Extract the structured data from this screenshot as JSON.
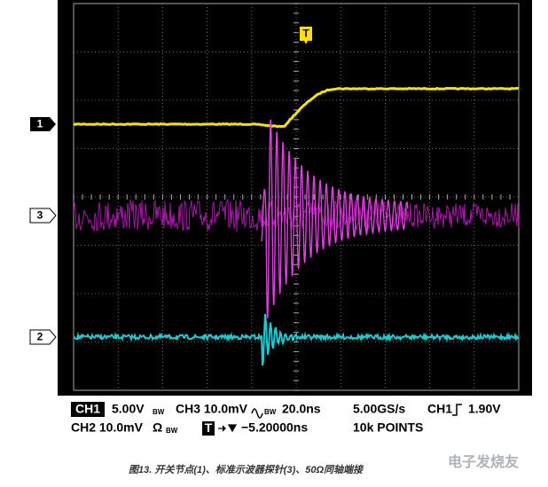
{
  "screen": {
    "trigger_marker": "T",
    "channel_markers": [
      "1",
      "3",
      "2"
    ]
  },
  "readout": {
    "row1": {
      "ch1_tag": "CH1",
      "ch1_scale": "5.00V",
      "ch1_bw": "BW",
      "ch3": "CH3 10.0mV",
      "ch3_bw": "BW",
      "timebase": "20.0ns",
      "rate": "5.00GS/s",
      "trig_source": "CH1",
      "trig_level": "1.90V"
    },
    "row2": {
      "ch2": "CH2 10.0mV",
      "ch2_ohm": "Ω",
      "ch2_bw": "BW",
      "trig_tag": "T",
      "trig_pos": "−5.20000ns",
      "points": "10k POINTS"
    }
  },
  "caption": "图13. 开关节点(1)、标准示波器探针(3)、50Ω同轴端接",
  "watermark": "电子发烧友"
}
